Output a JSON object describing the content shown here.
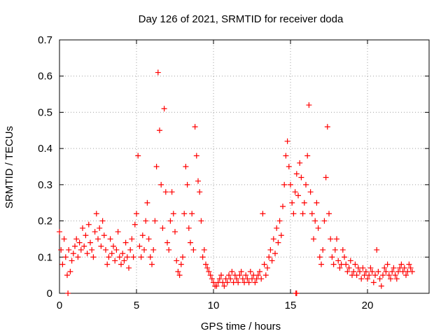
{
  "chart_data": {
    "type": "scatter",
    "title": "Day 126 of 2021, SRMTID for receiver doda",
    "xlabel": "GPS time / hours",
    "ylabel": "SRMTID / TECUs",
    "xlim": [
      0,
      24
    ],
    "ylim": [
      0,
      0.7
    ],
    "xticks": [
      0,
      5,
      10,
      15,
      20
    ],
    "xtick_labels": [
      "0",
      "5",
      "10",
      "15",
      "20"
    ],
    "yticks": [
      0,
      0.1,
      0.2,
      0.3,
      0.4,
      0.5,
      0.6,
      0.7
    ],
    "ytick_labels": [
      "0",
      "0.1",
      "0.2",
      "0.3",
      "0.4",
      "0.5",
      "0.6",
      "0.7"
    ],
    "grid": true,
    "marker": "plus",
    "color": "#ff0000",
    "series": [
      {
        "name": "SRMTID",
        "x": [
          0.0,
          0.1,
          0.2,
          0.3,
          0.4,
          0.5,
          0.6,
          0.7,
          0.8,
          0.9,
          1.0,
          1.1,
          1.2,
          1.3,
          1.4,
          1.5,
          1.6,
          1.7,
          1.8,
          1.9,
          2.0,
          2.1,
          2.2,
          2.3,
          2.4,
          2.5,
          2.6,
          2.7,
          2.8,
          2.9,
          3.0,
          3.1,
          3.2,
          3.3,
          3.4,
          3.5,
          3.6,
          3.7,
          3.8,
          3.9,
          4.0,
          4.1,
          4.2,
          4.3,
          4.4,
          4.5,
          4.6,
          4.7,
          4.8,
          4.9,
          5.0,
          5.1,
          5.2,
          5.3,
          5.4,
          5.5,
          5.6,
          5.7,
          5.8,
          5.9,
          6.0,
          6.1,
          6.2,
          6.3,
          6.4,
          6.5,
          6.6,
          6.7,
          6.8,
          6.9,
          7.0,
          7.1,
          7.2,
          7.3,
          7.4,
          7.5,
          7.6,
          7.7,
          7.8,
          7.9,
          8.0,
          8.1,
          8.2,
          8.3,
          8.4,
          8.5,
          8.6,
          8.7,
          8.8,
          8.9,
          9.0,
          9.1,
          9.2,
          9.3,
          9.4,
          9.5,
          9.6,
          9.7,
          9.8,
          9.9,
          10.0,
          10.1,
          10.2,
          10.3,
          10.4,
          10.5,
          10.6,
          10.7,
          10.8,
          10.9,
          11.0,
          11.1,
          11.2,
          11.3,
          11.4,
          11.5,
          11.6,
          11.7,
          11.8,
          11.9,
          12.0,
          12.1,
          12.2,
          12.3,
          12.4,
          12.5,
          12.6,
          12.7,
          12.8,
          12.9,
          13.0,
          13.1,
          13.2,
          13.3,
          13.4,
          13.5,
          13.6,
          13.7,
          13.8,
          13.9,
          14.0,
          14.1,
          14.2,
          14.3,
          14.4,
          14.5,
          14.6,
          14.7,
          14.8,
          14.9,
          15.0,
          15.1,
          15.2,
          15.3,
          15.4,
          15.5,
          15.6,
          15.7,
          15.8,
          15.9,
          16.0,
          16.1,
          16.2,
          16.3,
          16.4,
          16.5,
          16.6,
          16.7,
          16.8,
          16.9,
          17.0,
          17.1,
          17.2,
          17.3,
          17.4,
          17.5,
          17.6,
          17.7,
          17.8,
          17.9,
          18.0,
          18.1,
          18.2,
          18.3,
          18.4,
          18.5,
          18.6,
          18.7,
          18.8,
          18.9,
          19.0,
          19.1,
          19.2,
          19.3,
          19.4,
          19.5,
          19.6,
          19.7,
          19.8,
          19.9,
          20.0,
          20.1,
          20.2,
          20.3,
          20.4,
          20.5,
          20.6,
          20.7,
          20.8,
          20.9,
          21.0,
          21.1,
          21.2,
          21.3,
          21.4,
          21.5,
          21.6,
          21.7,
          21.8,
          21.9,
          22.0,
          22.1,
          22.2,
          22.3,
          22.4,
          22.5,
          22.6,
          22.7,
          22.8,
          22.9,
          0.55,
          15.35,
          15.4
        ],
        "y": [
          0.17,
          0.12,
          0.08,
          0.15,
          0.1,
          0.05,
          0.12,
          0.06,
          0.09,
          0.11,
          0.13,
          0.15,
          0.1,
          0.14,
          0.12,
          0.18,
          0.13,
          0.16,
          0.11,
          0.19,
          0.14,
          0.12,
          0.1,
          0.17,
          0.22,
          0.15,
          0.18,
          0.13,
          0.2,
          0.16,
          0.12,
          0.08,
          0.1,
          0.15,
          0.11,
          0.13,
          0.09,
          0.12,
          0.17,
          0.1,
          0.08,
          0.11,
          0.09,
          0.14,
          0.1,
          0.07,
          0.12,
          0.15,
          0.1,
          0.19,
          0.22,
          0.38,
          0.13,
          0.1,
          0.16,
          0.12,
          0.2,
          0.25,
          0.15,
          0.1,
          0.08,
          0.12,
          0.2,
          0.35,
          0.61,
          0.45,
          0.3,
          0.18,
          0.51,
          0.28,
          0.14,
          0.12,
          0.2,
          0.28,
          0.22,
          0.17,
          0.09,
          0.06,
          0.05,
          0.08,
          0.1,
          0.22,
          0.35,
          0.3,
          0.18,
          0.14,
          0.22,
          0.12,
          0.46,
          0.38,
          0.31,
          0.28,
          0.2,
          0.1,
          0.12,
          0.08,
          0.07,
          0.06,
          0.05,
          0.04,
          0.03,
          0.02,
          0.02,
          0.03,
          0.04,
          0.05,
          0.03,
          0.02,
          0.04,
          0.03,
          0.05,
          0.04,
          0.06,
          0.03,
          0.05,
          0.04,
          0.03,
          0.05,
          0.06,
          0.04,
          0.03,
          0.05,
          0.04,
          0.03,
          0.06,
          0.04,
          0.05,
          0.03,
          0.04,
          0.05,
          0.06,
          0.04,
          0.22,
          0.08,
          0.05,
          0.07,
          0.1,
          0.12,
          0.09,
          0.15,
          0.11,
          0.18,
          0.14,
          0.2,
          0.16,
          0.24,
          0.3,
          0.38,
          0.42,
          0.35,
          0.3,
          0.25,
          0.22,
          0.28,
          0.33,
          0.27,
          0.36,
          0.32,
          0.22,
          0.25,
          0.3,
          0.38,
          0.52,
          0.28,
          0.22,
          0.15,
          0.2,
          0.25,
          0.18,
          0.1,
          0.08,
          0.12,
          0.2,
          0.32,
          0.46,
          0.22,
          0.15,
          0.1,
          0.08,
          0.12,
          0.15,
          0.09,
          0.07,
          0.08,
          0.12,
          0.1,
          0.08,
          0.06,
          0.07,
          0.09,
          0.05,
          0.06,
          0.08,
          0.05,
          0.07,
          0.06,
          0.04,
          0.07,
          0.05,
          0.06,
          0.04,
          0.05,
          0.07,
          0.06,
          0.03,
          0.05,
          0.12,
          0.06,
          0.04,
          0.02,
          0.05,
          0.07,
          0.06,
          0.08,
          0.05,
          0.04,
          0.06,
          0.07,
          0.05,
          0.04,
          0.06,
          0.07,
          0.08,
          0.06,
          0.07,
          0.05,
          0.06,
          0.08,
          0.07,
          0.06,
          0.0,
          0.0,
          0.0
        ]
      }
    ]
  }
}
